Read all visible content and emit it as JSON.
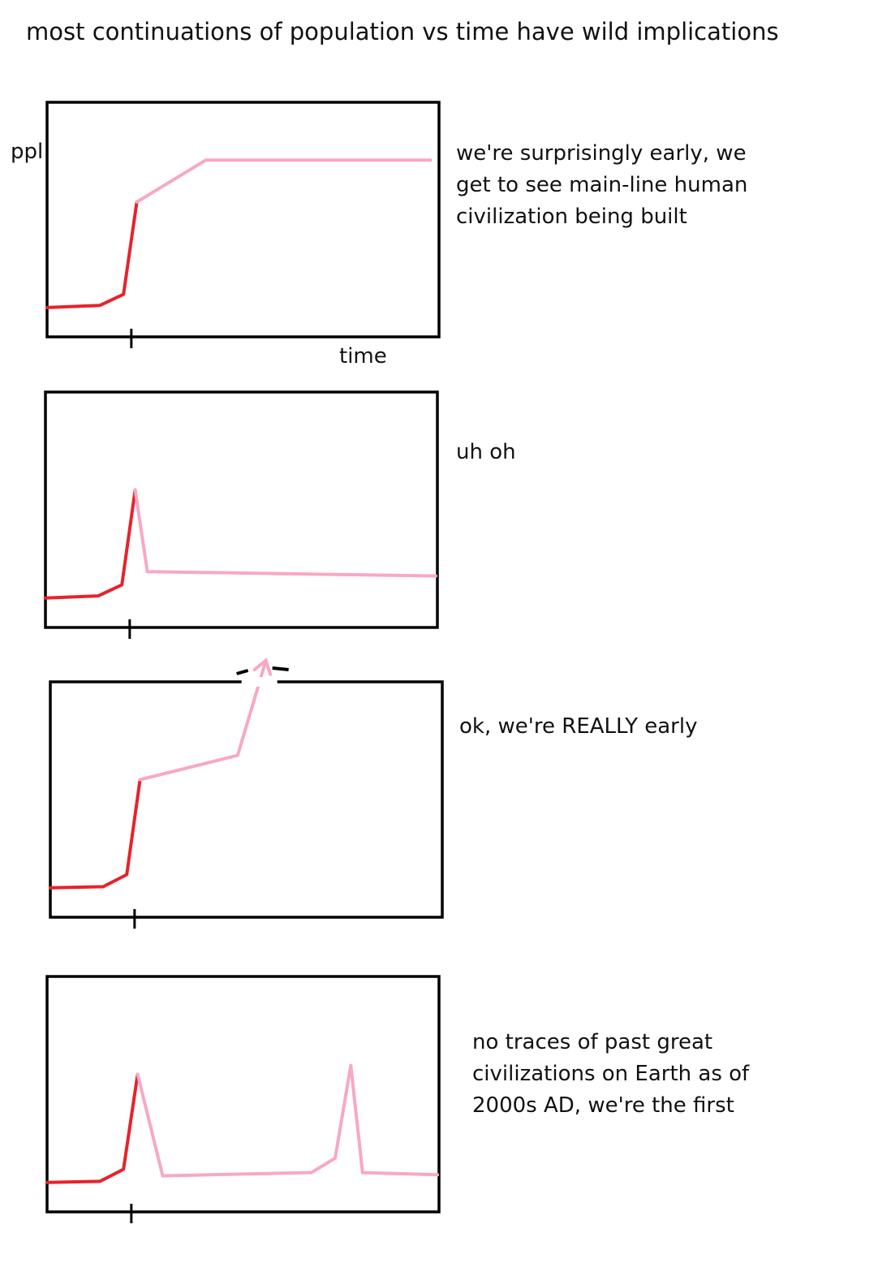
{
  "title": "most continuations of population vs time have wild implications",
  "chart_data": [
    {
      "type": "line",
      "ylabel": "ppl",
      "xlabel": "time",
      "caption": "we're surprisingly early, we get to see main-line human civilization being built",
      "xlim": [
        0,
        100
      ],
      "ylim": [
        0,
        100
      ],
      "series": [
        {
          "color": "#e8222b",
          "x": [
            0,
            13.5,
            19.5,
            22.9
          ],
          "y": [
            10,
            11,
            16,
            58
          ]
        },
        {
          "color": "#f7a8c4",
          "x": [
            22.9,
            40.5,
            97.8
          ],
          "y": [
            58,
            77,
            77
          ]
        }
      ],
      "now_marker_x": 21.5
    },
    {
      "type": "line",
      "caption": "uh oh",
      "xlim": [
        0,
        100
      ],
      "ylim": [
        0,
        100
      ],
      "series": [
        {
          "color": "#e8222b",
          "x": [
            0,
            13.5,
            19.5,
            22.9
          ],
          "y": [
            10,
            11,
            16,
            59
          ]
        },
        {
          "color": "#f7a8c4",
          "x": [
            22.9,
            26,
            99.6
          ],
          "y": [
            59,
            22,
            20
          ]
        }
      ],
      "now_marker_x": 21.5
    },
    {
      "type": "line",
      "caption": "ok, we're REALLY early",
      "xlim": [
        0,
        100
      ],
      "ylim": [
        0,
        100
      ],
      "series": [
        {
          "color": "#e8222b",
          "x": [
            0,
            13.5,
            19.5,
            22.9
          ],
          "y": [
            10,
            10.5,
            16,
            59
          ]
        },
        {
          "color": "#f7a8c4",
          "x": [
            22.9,
            47.8,
            55
          ],
          "y": [
            59,
            70,
            113
          ]
        }
      ],
      "now_marker_x": 21.5
    },
    {
      "type": "line",
      "caption": "no traces of past great civilizations on Earth as of 2000s AD, we're the first",
      "xlim": [
        0,
        100
      ],
      "ylim": [
        0,
        100
      ],
      "series": [
        {
          "color": "#e8222b",
          "x": [
            0,
            13.5,
            19.5,
            23.1
          ],
          "y": [
            10,
            10.5,
            16,
            59
          ]
        },
        {
          "color": "#f7a8c4",
          "x": [
            23.1,
            29.5,
            67.5,
            69.3,
            73.5,
            77.5,
            80.5,
            99.6
          ],
          "y": [
            59,
            13,
            14.5,
            16.5,
            21,
            63,
            14.5,
            13.5
          ]
        }
      ],
      "now_marker_x": 21.5
    }
  ]
}
